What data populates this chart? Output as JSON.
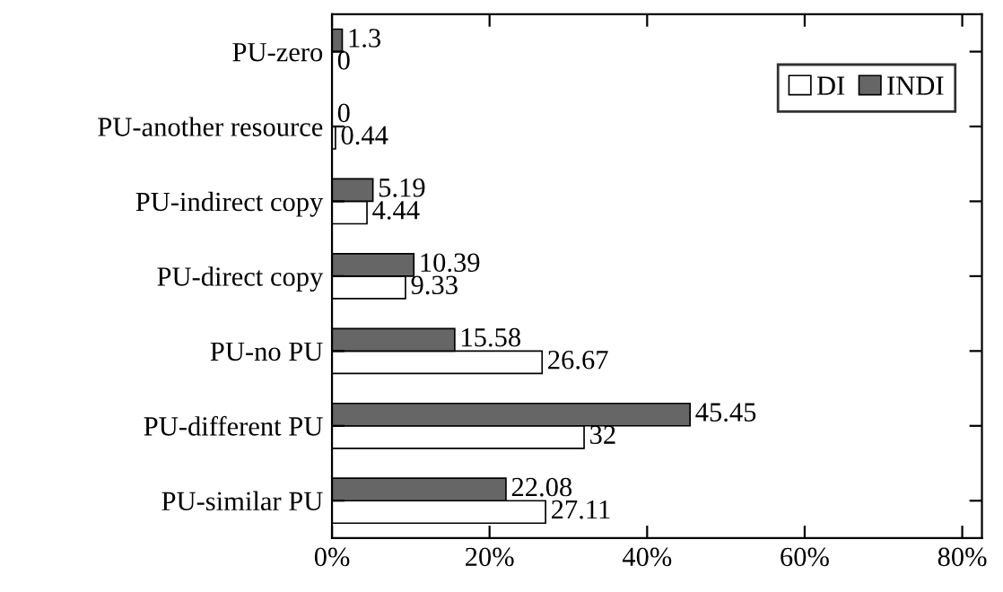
{
  "chart_data": {
    "type": "bar",
    "orientation": "horizontal",
    "categories": [
      "PU-zero",
      "PU-another resource",
      "PU-indirect copy",
      "PU-direct copy",
      "PU-no PU",
      "PU-different PU",
      "PU-similar PU"
    ],
    "series": [
      {
        "name": "DI",
        "color": "#ffffff",
        "values": [
          0,
          0.44,
          4.44,
          9.33,
          26.67,
          32,
          27.11
        ]
      },
      {
        "name": "INDI",
        "color": "#666666",
        "values": [
          1.3,
          0,
          5.19,
          10.39,
          15.58,
          45.45,
          22.08
        ]
      }
    ],
    "xlim": [
      0,
      82.5
    ],
    "xticks": [
      {
        "value": 0,
        "label": "0%"
      },
      {
        "value": 20,
        "label": "20%"
      },
      {
        "value": 40,
        "label": "40%"
      },
      {
        "value": 60,
        "label": "60%"
      },
      {
        "value": 80,
        "label": "80%"
      }
    ],
    "data_labels": true,
    "legend": "top right",
    "grid": false
  }
}
